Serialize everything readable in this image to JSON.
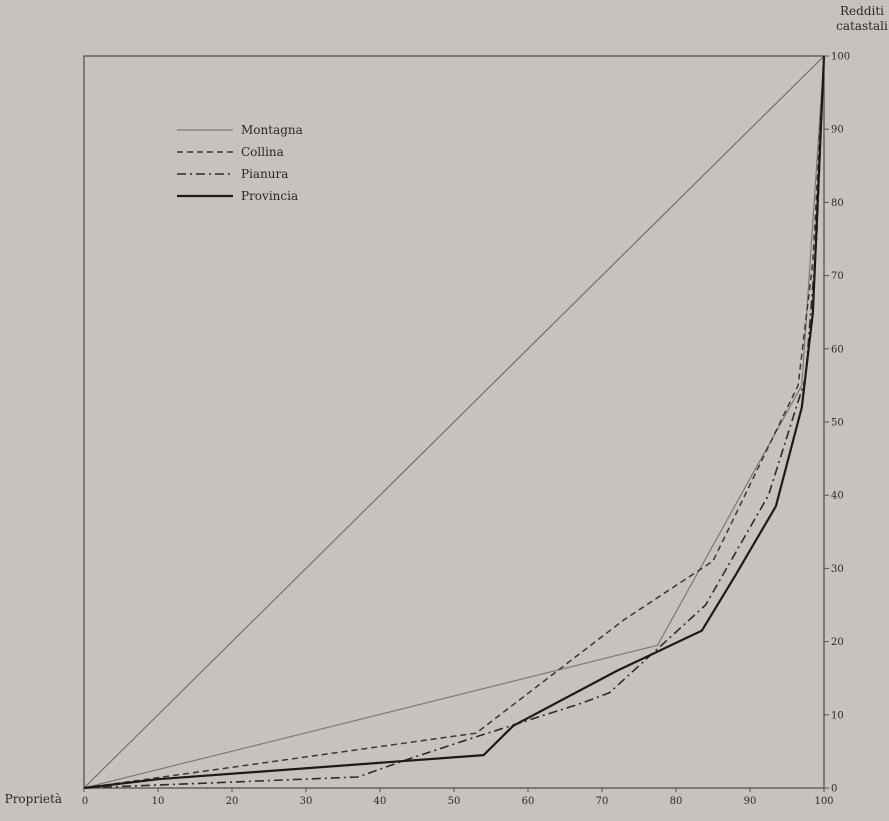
{
  "chart_data": {
    "type": "line",
    "title": "",
    "xlabel": "Proprietà",
    "ylabel_lines": [
      "Redditi",
      "catastali"
    ],
    "xlim": [
      0,
      100
    ],
    "ylim": [
      0,
      100
    ],
    "x_ticks": [
      {
        "value": 0,
        "label": "0"
      },
      {
        "value": 10,
        "label": "10"
      },
      {
        "value": 20,
        "label": "20"
      },
      {
        "value": 30,
        "label": "30"
      },
      {
        "value": 40,
        "label": "40"
      },
      {
        "value": 50,
        "label": "50"
      },
      {
        "value": 60,
        "label": "60"
      },
      {
        "value": 70,
        "label": "70"
      },
      {
        "value": 80,
        "label": "80"
      },
      {
        "value": 90,
        "label": "90"
      },
      {
        "value": 100,
        "label": "100"
      }
    ],
    "y_ticks": [
      {
        "value": 0,
        "label": "0"
      },
      {
        "value": 10,
        "label": "10"
      },
      {
        "value": 20,
        "label": "20"
      },
      {
        "value": 30,
        "label": "30"
      },
      {
        "value": 40,
        "label": "40"
      },
      {
        "value": 50,
        "label": "50"
      },
      {
        "value": 60,
        "label": "60"
      },
      {
        "value": 70,
        "label": "70"
      },
      {
        "value": 80,
        "label": "80"
      },
      {
        "value": 90,
        "label": "90"
      },
      {
        "value": 100,
        "label": "100"
      }
    ],
    "grid": false,
    "legend_position": "top-left",
    "equality_line": {
      "x": [
        0,
        100
      ],
      "y": [
        0,
        100
      ]
    },
    "series": [
      {
        "name": "Montagna",
        "style": "thin",
        "color": "#7d7a75",
        "x": [
          0,
          77.5,
          97,
          100
        ],
        "y": [
          0,
          19.5,
          55,
          100
        ]
      },
      {
        "name": "Collina",
        "style": "dashed",
        "color": "#3a3734",
        "x": [
          0,
          53,
          73,
          85,
          96.5,
          98.5,
          100
        ],
        "y": [
          0,
          7.5,
          23,
          31,
          55,
          72,
          100
        ]
      },
      {
        "name": "Pianura",
        "style": "dashdot",
        "color": "#2e2b28",
        "x": [
          0,
          37,
          44,
          53,
          67,
          71,
          84,
          92.5,
          97.5,
          99,
          100
        ],
        "y": [
          0,
          1.5,
          4,
          7,
          11.5,
          13,
          25,
          40,
          56,
          75,
          100
        ]
      },
      {
        "name": "Provincia",
        "style": "solid",
        "color": "#1c1a18",
        "x": [
          0,
          10,
          54,
          58,
          72,
          83.5,
          88,
          93.5,
          97,
          98.5,
          100
        ],
        "y": [
          0,
          1.2,
          4.5,
          8.5,
          16,
          21.5,
          29,
          38.5,
          52,
          65,
          100
        ]
      }
    ]
  }
}
